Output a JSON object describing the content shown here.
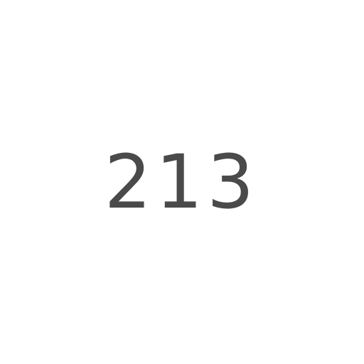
{
  "display": {
    "number": "213",
    "text_color": "#4a4a4a",
    "background_color": "#ffffff"
  }
}
